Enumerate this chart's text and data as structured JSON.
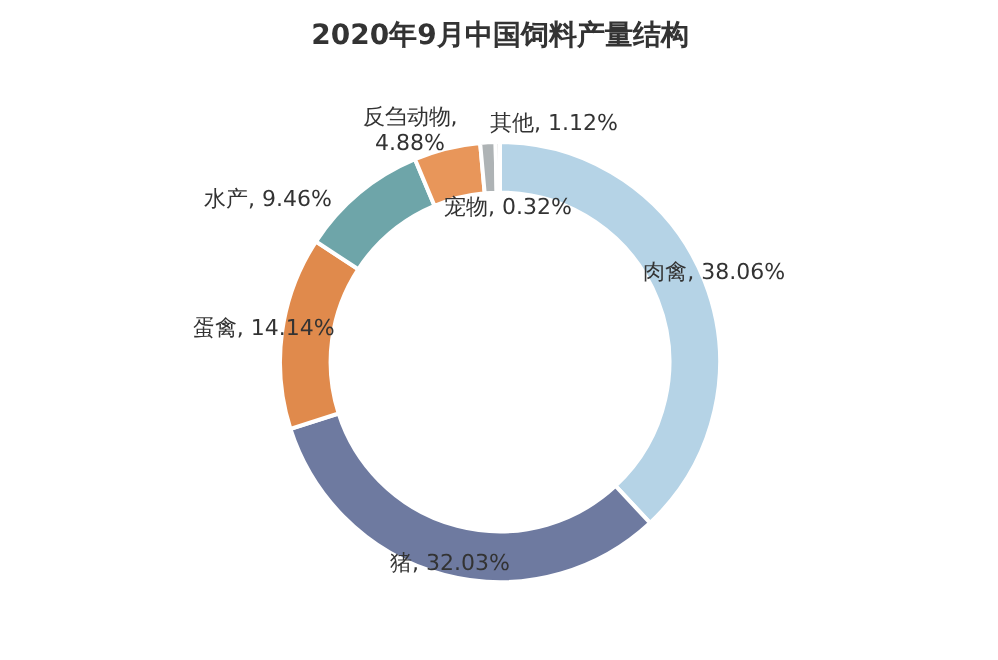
{
  "chart_data": {
    "type": "donut",
    "title": "2020年9月中国饲料产量结构",
    "categories": [
      "肉禽, 38.06%",
      "猪, 32.03%",
      "蛋禽, 14.14%",
      "水产, 9.46%",
      "反刍动物, 4.88%",
      "其他, 1.12%",
      "宠物, 0.32%"
    ],
    "values": [
      38.06,
      32.03,
      14.14,
      9.46,
      4.88,
      1.12,
      0.32
    ],
    "colors": [
      "#b5d3e6",
      "#6e7aa0",
      "#e08a4c",
      "#6ea5a9",
      "#e8965a",
      "#aeb3b5",
      "#d6d6d6"
    ]
  }
}
